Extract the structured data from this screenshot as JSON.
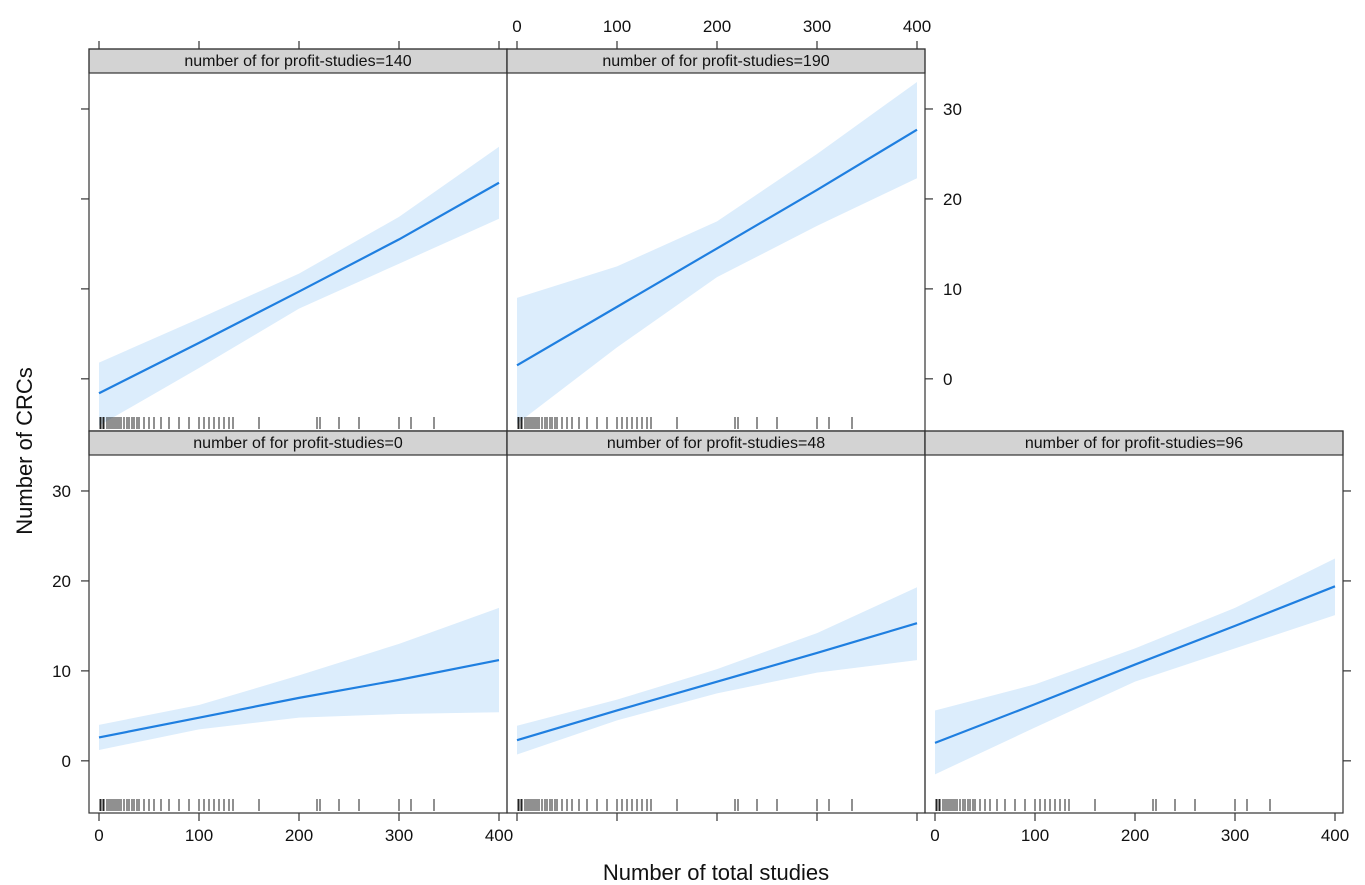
{
  "chart_data": {
    "type": "line",
    "xlabel": "Number of total studies",
    "ylabel": "Number of CRCs",
    "xlim": [
      -5,
      405
    ],
    "ylim": [
      -5.8,
      34
    ],
    "x_ticks": [
      0,
      100,
      200,
      300,
      400
    ],
    "y_ticks": [
      0,
      10,
      20,
      30
    ],
    "grid": false,
    "colors": {
      "line": "#1f7fe0",
      "band": "#dcedfc",
      "strip": "#d3d3d3"
    },
    "panels": [
      {
        "label": "number of for profit-studies=140",
        "row": 0,
        "col": 0,
        "x": [
          0,
          100,
          200,
          300,
          400
        ],
        "y": [
          -1.6,
          4.0,
          9.7,
          15.5,
          21.8
        ],
        "lower": [
          -5.2,
          1.2,
          7.8,
          12.8,
          17.8
        ],
        "upper": [
          1.8,
          6.7,
          11.7,
          18.0,
          25.8
        ]
      },
      {
        "label": "number of for profit-studies=190",
        "row": 0,
        "col": 1,
        "x": [
          0,
          100,
          200,
          300,
          400
        ],
        "y": [
          1.5,
          8.0,
          14.5,
          21.0,
          27.7
        ],
        "lower": [
          -5.0,
          3.5,
          11.3,
          17.0,
          22.3
        ],
        "upper": [
          9.0,
          12.5,
          17.5,
          25.0,
          33.0
        ]
      },
      {
        "label": "number of for profit-studies=0",
        "row": 1,
        "col": 0,
        "x": [
          0,
          100,
          200,
          300,
          400
        ],
        "y": [
          2.6,
          4.8,
          7.0,
          9.0,
          11.2
        ],
        "lower": [
          1.2,
          3.5,
          4.8,
          5.2,
          5.4
        ],
        "upper": [
          4.0,
          6.2,
          9.5,
          13.0,
          17.0
        ]
      },
      {
        "label": "number of for profit-studies=48",
        "row": 1,
        "col": 1,
        "x": [
          0,
          100,
          200,
          300,
          400
        ],
        "y": [
          2.3,
          5.6,
          8.8,
          12.0,
          15.3
        ],
        "lower": [
          0.7,
          4.5,
          7.5,
          9.8,
          11.2
        ],
        "upper": [
          3.9,
          6.8,
          10.2,
          14.2,
          19.3
        ]
      },
      {
        "label": "number of for profit-studies=96",
        "row": 1,
        "col": 2,
        "x": [
          0,
          100,
          200,
          300,
          400
        ],
        "y": [
          2.0,
          6.3,
          10.7,
          15.0,
          19.4
        ],
        "lower": [
          -1.5,
          3.7,
          8.8,
          12.5,
          16.2
        ],
        "upper": [
          5.6,
          8.5,
          12.5,
          17.0,
          22.5
        ]
      }
    ],
    "rug_x": [
      1,
      2,
      4,
      5,
      8,
      10,
      12,
      14,
      16,
      18,
      20,
      22,
      25,
      28,
      30,
      33,
      35,
      38,
      40,
      45,
      50,
      55,
      62,
      70,
      80,
      90,
      100,
      105,
      110,
      115,
      120,
      125,
      130,
      134,
      160,
      218,
      221,
      240,
      260,
      300,
      312,
      335
    ]
  }
}
